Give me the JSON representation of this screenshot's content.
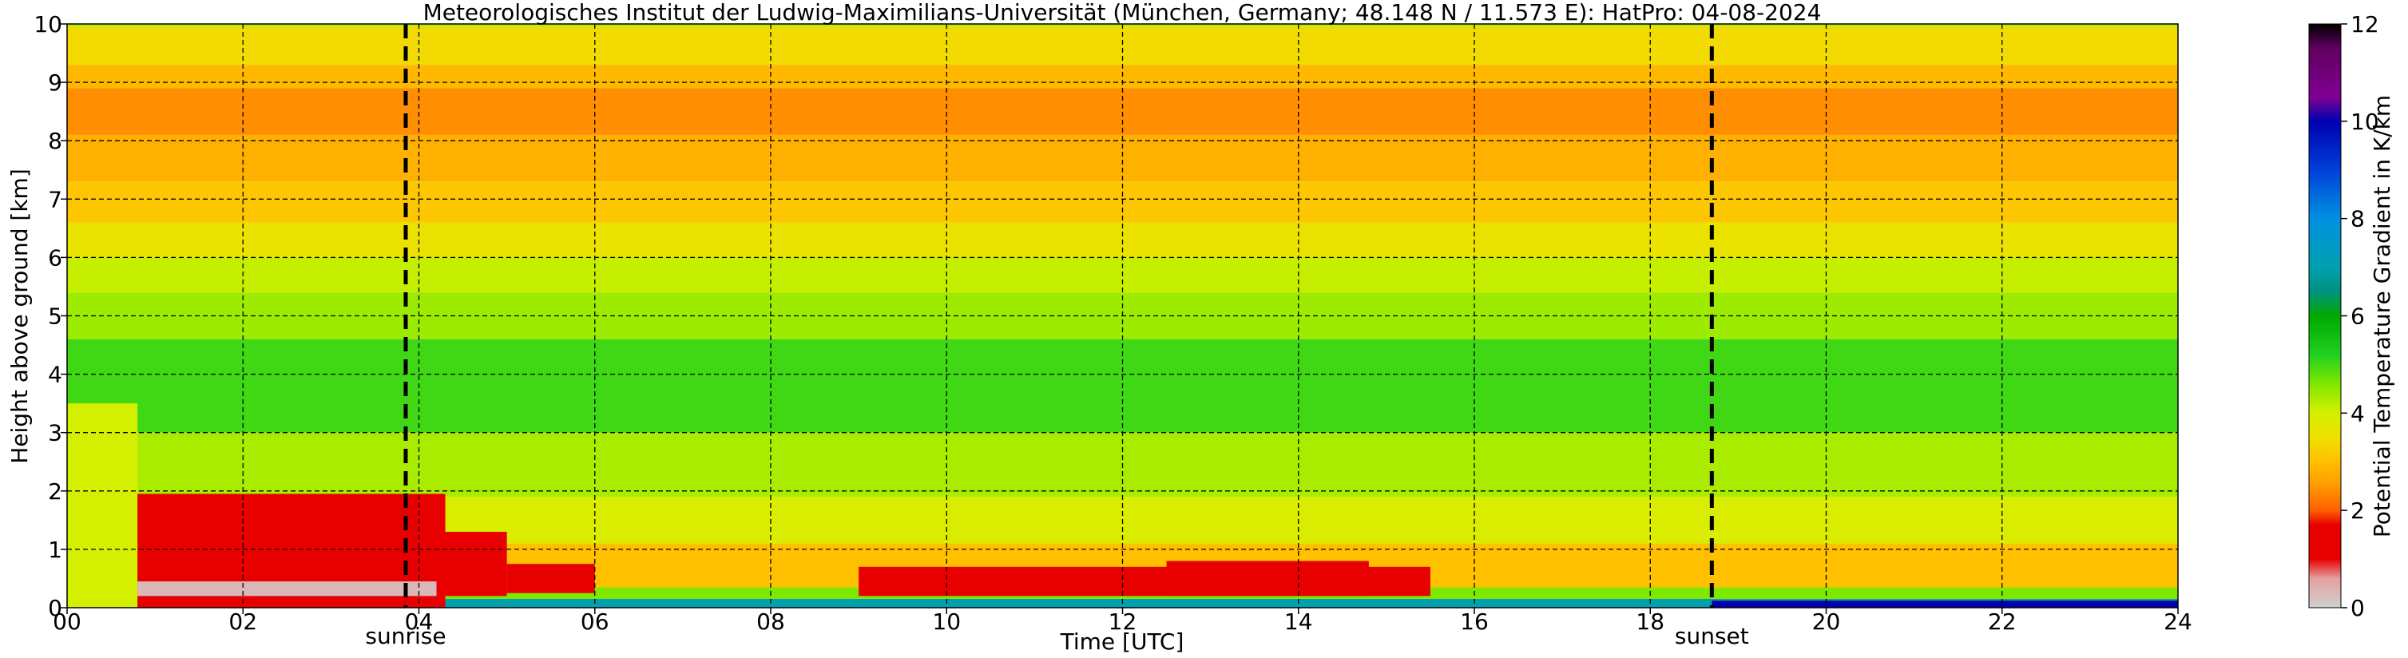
{
  "chart_data": {
    "type": "heatmap",
    "title": "Meteorologisches Institut der Ludwig-Maximilians-Universität (München, Germany; 48.148 N / 11.573 E):    HatPro: 04-08-2024",
    "xlabel": "Time [UTC]",
    "ylabel": "Height above ground [km]",
    "xlim": [
      0,
      24
    ],
    "ylim": [
      0,
      10
    ],
    "x_ticks": [
      "00",
      "02",
      "04",
      "06",
      "08",
      "10",
      "12",
      "14",
      "16",
      "18",
      "20",
      "22",
      "24"
    ],
    "y_ticks": [
      "0",
      "1",
      "2",
      "3",
      "4",
      "5",
      "6",
      "7",
      "8",
      "9",
      "10"
    ],
    "grid": true,
    "colorbar": {
      "label": "Potential Temperature Gradient in K/km",
      "range": [
        0,
        12
      ],
      "ticks": [
        "0",
        "2",
        "4",
        "6",
        "8",
        "10",
        "12"
      ],
      "stops": [
        {
          "value": 0.0,
          "color": "#d0d0d0"
        },
        {
          "value": 0.6,
          "color": "#e4a0a0"
        },
        {
          "value": 1.0,
          "color": "#e80000"
        },
        {
          "value": 1.7,
          "color": "#e80000"
        },
        {
          "value": 2.0,
          "color": "#ff6000"
        },
        {
          "value": 2.5,
          "color": "#ff9a00"
        },
        {
          "value": 3.0,
          "color": "#ffc000"
        },
        {
          "value": 3.5,
          "color": "#f0e000"
        },
        {
          "value": 4.0,
          "color": "#d4f000"
        },
        {
          "value": 4.6,
          "color": "#80e800"
        },
        {
          "value": 5.2,
          "color": "#20d020"
        },
        {
          "value": 6.0,
          "color": "#00a800"
        },
        {
          "value": 6.5,
          "color": "#009080"
        },
        {
          "value": 7.0,
          "color": "#00a0b0"
        },
        {
          "value": 8.0,
          "color": "#0090e0"
        },
        {
          "value": 9.0,
          "color": "#0040d8"
        },
        {
          "value": 10.0,
          "color": "#0000b0"
        },
        {
          "value": 10.5,
          "color": "#800090"
        },
        {
          "value": 11.5,
          "color": "#600060"
        },
        {
          "value": 12.0,
          "color": "#000000"
        }
      ]
    },
    "events": [
      {
        "label": "sunrise",
        "time": 3.85
      },
      {
        "label": "sunset",
        "time": 18.7
      }
    ],
    "field_regions": [
      {
        "t0": 0,
        "t1": 24,
        "h0": 9.95,
        "h1": 10.0,
        "value": 4.2
      },
      {
        "t0": 0,
        "t1": 24,
        "h0": 9.3,
        "h1": 9.95,
        "value": 3.4
      },
      {
        "t0": 0,
        "t1": 24,
        "h0": 8.9,
        "h1": 9.3,
        "value": 2.9
      },
      {
        "t0": 0,
        "t1": 24,
        "h0": 8.1,
        "h1": 8.9,
        "value": 2.4
      },
      {
        "t0": 0,
        "t1": 24,
        "h0": 7.3,
        "h1": 8.1,
        "value": 2.8
      },
      {
        "t0": 0,
        "t1": 24,
        "h0": 6.6,
        "h1": 7.3,
        "value": 3.1
      },
      {
        "t0": 0,
        "t1": 24,
        "h0": 6.0,
        "h1": 6.6,
        "value": 3.6
      },
      {
        "t0": 0,
        "t1": 24,
        "h0": 5.4,
        "h1": 6.0,
        "value": 4.1
      },
      {
        "t0": 0,
        "t1": 24,
        "h0": 4.6,
        "h1": 5.4,
        "value": 4.4
      },
      {
        "t0": 0,
        "t1": 24,
        "h0": 3.0,
        "h1": 4.6,
        "value": 5.0
      },
      {
        "t0": 0,
        "t1": 24,
        "h0": 1.9,
        "h1": 3.0,
        "value": 4.3
      },
      {
        "t0": 0,
        "t1": 24,
        "h0": 1.1,
        "h1": 1.9,
        "value": 3.9
      },
      {
        "t0": 0,
        "t1": 24,
        "h0": 0.35,
        "h1": 1.1,
        "value": 3.0
      },
      {
        "t0": 0,
        "t1": 24,
        "h0": 0.15,
        "h1": 0.35,
        "value": 4.6
      },
      {
        "t0": 0,
        "t1": 24,
        "h0": 0.0,
        "h1": 0.15,
        "value": 7.0
      },
      {
        "t0": 0.0,
        "t1": 0.8,
        "h0": 0.0,
        "h1": 3.5,
        "value": 4.0
      },
      {
        "t0": 0.8,
        "t1": 4.3,
        "h0": 0.0,
        "h1": 1.95,
        "value": 1.2
      },
      {
        "t0": 4.3,
        "t1": 5.0,
        "h0": 0.2,
        "h1": 1.3,
        "value": 1.5
      },
      {
        "t0": 5.0,
        "t1": 6.0,
        "h0": 0.25,
        "h1": 0.75,
        "value": 1.6
      },
      {
        "t0": 9.0,
        "t1": 15.5,
        "h0": 0.2,
        "h1": 0.7,
        "value": 1.6
      },
      {
        "t0": 12.5,
        "t1": 14.8,
        "h0": 0.2,
        "h1": 0.8,
        "value": 1.2
      },
      {
        "t0": 0.8,
        "t1": 4.2,
        "h0": 0.2,
        "h1": 0.45,
        "value": 0.3
      },
      {
        "t0": 18.7,
        "t1": 24,
        "h0": 0.0,
        "h1": 0.12,
        "value": 10.0
      }
    ]
  }
}
